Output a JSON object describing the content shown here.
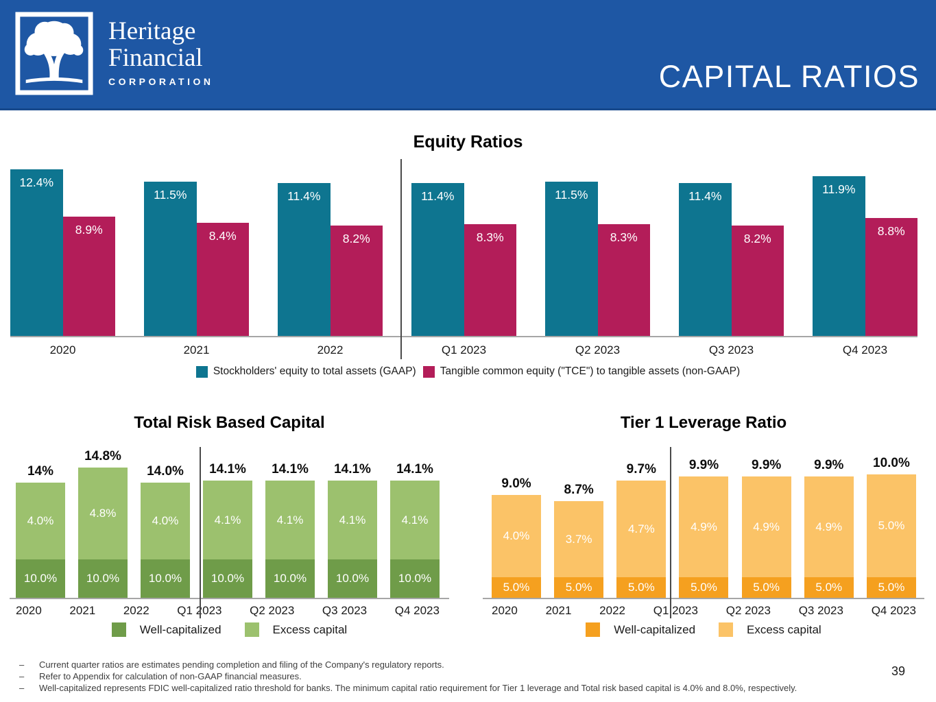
{
  "header": {
    "logo_line1": "Heritage",
    "logo_line2": "Financial",
    "logo_line3": "CORPORATION",
    "title": "CAPITAL RATIOS"
  },
  "colors": {
    "header_blue": "#1e57a4",
    "teal": "#0e7590",
    "crimson": "#b31d59",
    "green_dark": "#6f9c49",
    "green_light": "#9cc16e",
    "orange_dark": "#f5a01f",
    "orange_light": "#fbc367",
    "axis_gray": "#a6a6a6",
    "divider_gray": "#4a4a4a"
  },
  "chart_data": [
    {
      "id": "equity-ratios",
      "type": "bar",
      "title": "Equity Ratios",
      "categories": [
        "2020",
        "2021",
        "2022",
        "Q1 2023",
        "Q2 2023",
        "Q3 2023",
        "Q4 2023"
      ],
      "series": [
        {
          "name": "Stockholders' equity to total assets (GAAP)",
          "color": "#0e7590",
          "values": [
            12.4,
            11.5,
            11.4,
            11.4,
            11.5,
            11.4,
            11.9
          ],
          "labels": [
            "12.4%",
            "11.5%",
            "11.4%",
            "11.4%",
            "11.5%",
            "11.4%",
            "11.9%"
          ]
        },
        {
          "name": "Tangible common equity (\"TCE\") to tangible assets (non-GAAP)",
          "color": "#b31d59",
          "values": [
            8.9,
            8.4,
            8.2,
            8.3,
            8.3,
            8.2,
            8.8
          ],
          "labels": [
            "8.9%",
            "8.4%",
            "8.2%",
            "8.3%",
            "8.3%",
            "8.2%",
            "8.8%"
          ]
        }
      ],
      "baseline_value": 0,
      "ylim": [
        0,
        13.2
      ],
      "grid": false,
      "legend_position": "bottom",
      "divider_between": [
        "2022",
        "Q1 2023"
      ]
    },
    {
      "id": "total-risk-based-capital",
      "type": "stacked-bar",
      "title": "Total Risk Based Capital",
      "categories": [
        "2020",
        "2021",
        "2022",
        "Q1 2023",
        "Q2 2023",
        "Q3 2023",
        "Q4 2023"
      ],
      "series": [
        {
          "name": "Well-capitalized",
          "color": "#6f9c49",
          "values": [
            10.0,
            10.0,
            10.0,
            10.0,
            10.0,
            10.0,
            10.0
          ],
          "labels": [
            "10.0%",
            "10.0%",
            "10.0%",
            "10.0%",
            "10.0%",
            "10.0%",
            "10.0%"
          ]
        },
        {
          "name": "Excess capital",
          "color": "#9cc16e",
          "values": [
            4.0,
            4.8,
            4.0,
            4.1,
            4.1,
            4.1,
            4.1
          ],
          "labels": [
            "4.0%",
            "4.8%",
            "4.0%",
            "4.1%",
            "4.1%",
            "4.1%",
            "4.1%"
          ]
        }
      ],
      "totals": {
        "values": [
          14.0,
          14.8,
          14.0,
          14.1,
          14.1,
          14.1,
          14.1
        ],
        "labels": [
          "14%",
          "14.8%",
          "14.0%",
          "14.1%",
          "14.1%",
          "14.1%",
          "14.1%"
        ]
      },
      "baseline_value": 8.0,
      "grid": false,
      "legend_position": "bottom",
      "divider_between": [
        "2022",
        "Q1 2023"
      ]
    },
    {
      "id": "tier-1-leverage-ratio",
      "type": "stacked-bar",
      "title": "Tier 1 Leverage Ratio",
      "categories": [
        "2020",
        "2021",
        "2022",
        "Q1 2023",
        "Q2 2023",
        "Q3 2023",
        "Q4 2023"
      ],
      "series": [
        {
          "name": "Well-capitalized",
          "color": "#f5a01f",
          "values": [
            5.0,
            5.0,
            5.0,
            5.0,
            5.0,
            5.0,
            5.0
          ],
          "labels": [
            "5.0%",
            "5.0%",
            "5.0%",
            "5.0%",
            "5.0%",
            "5.0%",
            "5.0%"
          ]
        },
        {
          "name": "Excess capital",
          "color": "#fbc367",
          "values": [
            4.0,
            3.7,
            4.7,
            4.9,
            4.9,
            4.9,
            5.0
          ],
          "labels": [
            "4.0%",
            "3.7%",
            "4.7%",
            "4.9%",
            "4.9%",
            "4.9%",
            "5.0%"
          ]
        }
      ],
      "totals": {
        "values": [
          9.0,
          8.7,
          9.7,
          9.9,
          9.9,
          9.9,
          10.0
        ],
        "labels": [
          "9.0%",
          "8.7%",
          "9.7%",
          "9.9%",
          "9.9%",
          "9.9%",
          "10.0%"
        ]
      },
      "baseline_value": 4.0,
      "grid": false,
      "legend_position": "bottom",
      "divider_between": [
        "2022",
        "Q1 2023"
      ]
    }
  ],
  "footnote_dash": "–",
  "footnotes": [
    "Current quarter ratios are estimates pending completion and filing of the Company's regulatory reports.",
    "Refer to Appendix for calculation of non-GAAP financial measures.",
    "Well-capitalized represents FDIC well-capitalized ratio threshold for banks. The minimum capital ratio requirement for Tier 1 leverage and Total risk based capital is 4.0% and 8.0%, respectively."
  ],
  "page_number": "39"
}
